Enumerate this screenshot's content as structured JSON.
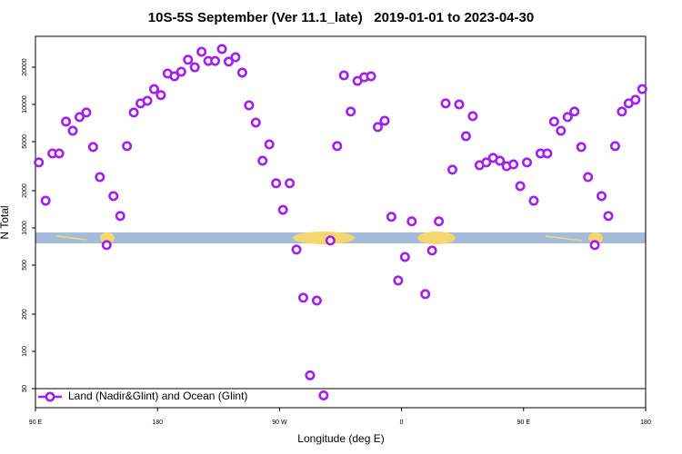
{
  "chart_data": {
    "type": "scatter",
    "title": "10S-5S September (Ver 11.1_late)   2019-01-01 to 2023-04-30",
    "xlabel": "Longitude (deg E)",
    "ylabel": "N Total",
    "yscale": "log",
    "xlim": [
      90,
      540
    ],
    "xticks": [
      {
        "value": 90,
        "label": "90 E"
      },
      180,
      {
        "value": 270,
        "label": "90 W"
      },
      {
        "value": 360,
        "label": "0"
      },
      {
        "value": 450,
        "label": "90 E"
      },
      {
        "value": 540,
        "label": "180"
      }
    ],
    "ylim": [
      35,
      35600
    ],
    "yticks": [
      50,
      100,
      200,
      500,
      1000,
      2000,
      5000,
      10000,
      20000
    ],
    "legend": "bottom-left",
    "series": [
      {
        "name": "Land (Nadir&Glint) and Ocean (Glint)",
        "color": "#a020f0",
        "x": [
          92.5,
          97.5,
          102.5,
          107.5,
          112.5,
          117.5,
          122.5,
          127.5,
          132.5,
          137.5,
          142.5,
          147.5,
          152.5,
          157.5,
          162.5,
          167.5,
          172.5,
          177.5,
          182.5,
          187.5,
          192.5,
          197.5,
          202.5,
          207.5,
          212.5,
          217.5,
          222.5,
          227.5,
          232.5,
          237.5,
          242.5,
          247.5,
          252.5,
          257.5,
          262.5,
          267.5,
          272.5,
          277.5,
          282.5,
          287.5,
          292.5,
          297.5,
          302.5,
          307.5,
          312.5,
          317.5,
          322.5,
          327.5,
          332.5,
          337.5,
          342.5,
          347.5,
          352.5,
          357.5,
          362.5,
          367.5,
          377.5,
          382.5,
          387.5,
          392.5,
          397.5,
          402.5,
          407.5,
          412.5,
          417.5,
          422.5,
          427.5,
          432.5,
          437.5,
          442.5,
          447.5,
          452.5,
          457.5,
          462.5,
          467.5,
          472.5,
          477.5,
          482.5,
          487.5,
          492.5,
          497.5,
          502.5,
          507.5,
          512.5,
          517.5,
          522.5,
          527.5,
          532.5,
          537.5
        ],
        "values": [
          3390,
          1660,
          4010,
          4010,
          7260,
          6120,
          7900,
          8600,
          4520,
          2580,
          726,
          1810,
          1250,
          4600,
          8600,
          10200,
          10700,
          13300,
          11900,
          17800,
          16900,
          18400,
          23000,
          20000,
          26700,
          22500,
          22500,
          28100,
          22200,
          24100,
          18100,
          9840,
          7130,
          3500,
          4750,
          2300,
          1400,
          2300,
          667,
          272,
          64,
          258,
          44,
          790,
          4600,
          17200,
          8750,
          15500,
          16600,
          16900,
          6560,
          7380,
          1230,
          375,
          582,
          1130,
          291,
          656,
          1130,
          10200,
          2960,
          10000,
          5530,
          8040,
          3220,
          3390,
          3690,
          3500,
          3160,
          3270,
          2180,
          3390,
          1660,
          4010,
          4010,
          7260,
          6120,
          7900,
          8750,
          4520,
          2580,
          726,
          1810,
          1250,
          4600,
          8750,
          10200,
          10900,
          13300
        ]
      }
    ]
  }
}
